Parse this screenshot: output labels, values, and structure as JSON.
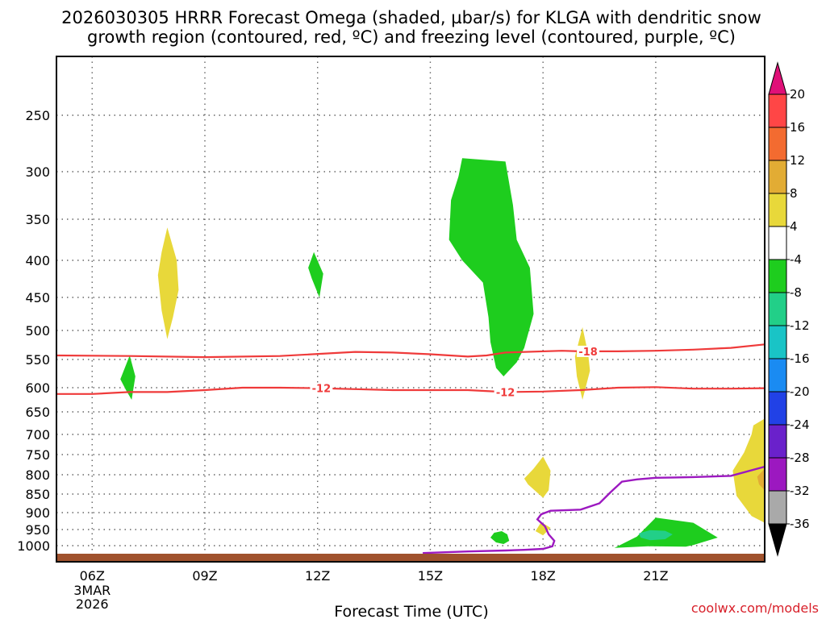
{
  "title": {
    "line1": "2026030305 HRRR Forecast Omega (shaded, µbar/s) for KLGA with dendritic snow",
    "line2": "growth region (contoured, red, ºC) and freezing level (contoured, purple, ºC)"
  },
  "credit": "coolwx.com/models",
  "chart_data": {
    "type": "time-height cross section",
    "title": "2026030305 HRRR Forecast Omega (shaded, µbar/s) for KLGA with dendritic snow growth region (contoured, red, ºC) and freezing level (contoured, purple, ºC)",
    "xlabel": "Forecast Time (UTC)",
    "x_ticks": [
      {
        "hour": 6,
        "label": "06Z",
        "sub1": "3MAR",
        "sub2": "2026"
      },
      {
        "hour": 9,
        "label": "09Z"
      },
      {
        "hour": 12,
        "label": "12Z"
      },
      {
        "hour": 15,
        "label": "15Z"
      },
      {
        "hour": 18,
        "label": "18Z"
      },
      {
        "hour": 21,
        "label": "21Z"
      }
    ],
    "xlim_hours": [
      5.05,
      23.9
    ],
    "y_axis": {
      "units": "hPa",
      "reversed": true,
      "ylim": [
        190,
        1030
      ],
      "ticks": [
        {
          "p": 250,
          "label": "250"
        },
        {
          "p": 300,
          "label": "300"
        },
        {
          "p": 350,
          "label": "350"
        },
        {
          "p": 400,
          "label": "400"
        },
        {
          "p": 450,
          "label": "450"
        },
        {
          "p": 500,
          "label": "500"
        },
        {
          "p": 550,
          "label": "550"
        },
        {
          "p": 600,
          "label": "600"
        },
        {
          "p": 650,
          "label": "650"
        },
        {
          "p": 700,
          "label": "700"
        },
        {
          "p": 750,
          "label": "750"
        },
        {
          "p": 800,
          "label": "800"
        },
        {
          "p": 850,
          "label": "850"
        },
        {
          "p": 900,
          "label": "900"
        },
        {
          "p": 950,
          "label": "950"
        },
        {
          "p": 1000,
          "label": "1000"
        }
      ]
    },
    "grid": true,
    "omega_areas": [
      {
        "sign": "positive",
        "range": "4 to 8",
        "color": "#e8d83a",
        "points": [
          [
            8.0,
            360
          ],
          [
            8.25,
            400
          ],
          [
            8.3,
            440
          ],
          [
            8.15,
            480
          ],
          [
            8.0,
            515
          ],
          [
            7.85,
            470
          ],
          [
            7.75,
            420
          ],
          [
            7.85,
            390
          ]
        ]
      },
      {
        "sign": "negative",
        "range": "-4 to -8",
        "color": "#1ecd1e",
        "points": [
          [
            11.9,
            390
          ],
          [
            12.15,
            418
          ],
          [
            12.05,
            450
          ],
          [
            11.85,
            425
          ],
          [
            11.75,
            410
          ]
        ]
      },
      {
        "sign": "negative",
        "range": "-4 to -8",
        "color": "#1ecd1e",
        "points": [
          [
            7.0,
            543
          ],
          [
            7.15,
            580
          ],
          [
            7.05,
            625
          ],
          [
            6.9,
            605
          ],
          [
            6.75,
            585
          ]
        ]
      },
      {
        "sign": "negative",
        "range": "-4 to -8",
        "color": "#1ecd1e",
        "points": [
          [
            15.85,
            288
          ],
          [
            17.0,
            291
          ],
          [
            17.2,
            335
          ],
          [
            17.3,
            375
          ],
          [
            17.65,
            410
          ],
          [
            17.75,
            475
          ],
          [
            17.5,
            530
          ],
          [
            17.3,
            555
          ],
          [
            16.95,
            580
          ],
          [
            16.75,
            565
          ],
          [
            16.6,
            520
          ],
          [
            16.55,
            480
          ],
          [
            16.4,
            430
          ],
          [
            15.85,
            400
          ],
          [
            15.5,
            375
          ],
          [
            15.55,
            330
          ],
          [
            15.75,
            305
          ]
        ]
      },
      {
        "sign": "positive",
        "range": "4 to 8",
        "color": "#e8d83a",
        "points": [
          [
            19.05,
            495
          ],
          [
            19.2,
            540
          ],
          [
            19.25,
            570
          ],
          [
            19.05,
            625
          ],
          [
            18.9,
            580
          ],
          [
            18.85,
            545
          ]
        ]
      },
      {
        "sign": "positive",
        "range": "4 to 8",
        "color": "#e8d83a",
        "points": [
          [
            18.0,
            755
          ],
          [
            18.2,
            790
          ],
          [
            18.15,
            840
          ],
          [
            18.0,
            860
          ],
          [
            17.6,
            825
          ],
          [
            17.5,
            810
          ],
          [
            17.75,
            785
          ]
        ]
      },
      {
        "sign": "positive",
        "range": "4 to 8",
        "color": "#e8d83a",
        "points": [
          [
            17.95,
            928
          ],
          [
            18.2,
            945
          ],
          [
            18.0,
            968
          ],
          [
            17.8,
            955
          ]
        ]
      },
      {
        "sign": "negative",
        "range": "-4 to -8",
        "color": "#1ecd1e",
        "points": [
          [
            16.9,
            955
          ],
          [
            17.05,
            965
          ],
          [
            17.1,
            985
          ],
          [
            16.95,
            995
          ],
          [
            16.75,
            990
          ],
          [
            16.6,
            975
          ],
          [
            16.7,
            960
          ]
        ]
      },
      {
        "sign": "negative",
        "range": "-4 to -8",
        "color": "#1ecd1e",
        "points": [
          [
            21.0,
            915
          ],
          [
            22.0,
            930
          ],
          [
            22.65,
            975
          ],
          [
            22.0,
            998
          ],
          [
            21.8,
            1003
          ],
          [
            20.8,
            1002
          ],
          [
            19.9,
            1007
          ],
          [
            20.5,
            972
          ]
        ]
      },
      {
        "sign": "negative",
        "range": "-8 to -12",
        "color": "#22cf88",
        "points": [
          [
            20.55,
            962
          ],
          [
            20.85,
            952
          ],
          [
            21.25,
            954
          ],
          [
            21.45,
            965
          ],
          [
            21.25,
            980
          ],
          [
            20.85,
            983
          ],
          [
            20.6,
            975
          ]
        ]
      },
      {
        "sign": "positive",
        "range": "4 to 8",
        "color": "#e8d83a",
        "points": [
          [
            23.9,
            665
          ],
          [
            23.9,
            930
          ],
          [
            23.55,
            910
          ],
          [
            23.15,
            855
          ],
          [
            23.05,
            790
          ],
          [
            23.35,
            745
          ],
          [
            23.55,
            700
          ],
          [
            23.6,
            680
          ]
        ]
      },
      {
        "sign": "positive",
        "range": "8 to 12",
        "color": "#e2ac34",
        "points": [
          [
            23.9,
            785
          ],
          [
            23.9,
            840
          ],
          [
            23.75,
            825
          ],
          [
            23.7,
            805
          ]
        ]
      }
    ],
    "isotherms": [
      {
        "name": "-18",
        "color": "#ef3a3a",
        "label": "-18",
        "label_x": 19.2,
        "points": [
          [
            5.05,
            543
          ],
          [
            7.0,
            544
          ],
          [
            9.0,
            546
          ],
          [
            11.0,
            544
          ],
          [
            13.0,
            537
          ],
          [
            14.0,
            538
          ],
          [
            15.0,
            541
          ],
          [
            16.0,
            545
          ],
          [
            16.5,
            543
          ],
          [
            17.0,
            538
          ],
          [
            18.5,
            535
          ],
          [
            19.0,
            536
          ],
          [
            20.0,
            536
          ],
          [
            21.0,
            535
          ],
          [
            22.0,
            533
          ],
          [
            23.0,
            530
          ],
          [
            23.9,
            524
          ]
        ]
      },
      {
        "name": "-12",
        "color": "#ef3a3a",
        "label": "-12",
        "label_x": 12.1,
        "label2_x": 17.0,
        "points": [
          [
            5.05,
            613
          ],
          [
            6.0,
            613
          ],
          [
            7.0,
            609
          ],
          [
            8.0,
            609
          ],
          [
            9.0,
            605
          ],
          [
            10.0,
            600
          ],
          [
            11.0,
            600
          ],
          [
            12.0,
            601
          ],
          [
            13.0,
            603
          ],
          [
            14.0,
            605
          ],
          [
            15.0,
            605
          ],
          [
            16.0,
            605
          ],
          [
            17.0,
            609
          ],
          [
            18.0,
            608
          ],
          [
            19.0,
            605
          ],
          [
            20.0,
            600
          ],
          [
            21.0,
            599
          ],
          [
            22.0,
            602
          ],
          [
            23.0,
            602
          ],
          [
            23.9,
            601
          ]
        ]
      }
    ],
    "freezing_level": {
      "name": "0",
      "color": "#9c18c0",
      "points": [
        [
          14.8,
          1023
        ],
        [
          16.0,
          1018
        ],
        [
          17.0,
          1015
        ],
        [
          17.5,
          1013
        ],
        [
          18.0,
          1010
        ],
        [
          18.25,
          1002
        ],
        [
          18.3,
          985
        ],
        [
          18.15,
          965
        ],
        [
          18.05,
          940
        ],
        [
          17.85,
          920
        ],
        [
          17.95,
          905
        ],
        [
          18.2,
          895
        ],
        [
          19.0,
          892
        ],
        [
          19.5,
          875
        ],
        [
          19.8,
          845
        ],
        [
          20.1,
          818
        ],
        [
          20.5,
          812
        ],
        [
          21.0,
          808
        ],
        [
          21.5,
          807
        ],
        [
          22.0,
          806
        ],
        [
          23.0,
          803
        ],
        [
          23.9,
          780
        ]
      ]
    },
    "colorbar": {
      "label_values": [
        "20",
        "16",
        "12",
        "8",
        "4",
        "-4",
        "-8",
        "-12",
        "-16",
        "-20",
        "-24",
        "-28",
        "-32",
        "-36"
      ],
      "bands_top_to_bottom": [
        "#ff4646",
        "#f36b30",
        "#e2ac34",
        "#e8d83a",
        "#ffffff",
        "#1ecd1e",
        "#22cf88",
        "#19c4c6",
        "#1a8bf2",
        "#2141e6",
        "#6a21cb",
        "#9c18c0",
        "#a9a9a9"
      ],
      "top_arrow_color": "#e01078",
      "bottom_arrow_color": "#000000"
    },
    "ground_color": "#a0522d"
  }
}
